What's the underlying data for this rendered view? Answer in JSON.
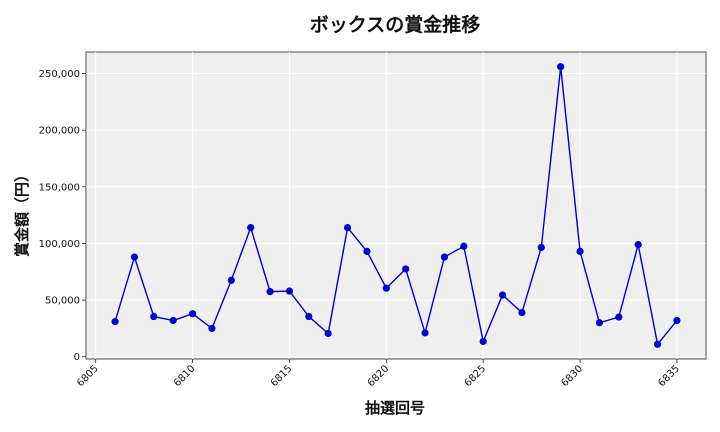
{
  "chart_data": {
    "type": "line",
    "title": "ボックスの賞金推移",
    "xlabel": "抽選回号",
    "ylabel": "賞金額（円）",
    "x": [
      6806,
      6807,
      6808,
      6809,
      6810,
      6811,
      6812,
      6813,
      6814,
      6815,
      6816,
      6817,
      6818,
      6819,
      6820,
      6821,
      6822,
      6823,
      6824,
      6825,
      6826,
      6827,
      6828,
      6829,
      6830,
      6831,
      6832,
      6833,
      6834,
      6835
    ],
    "series": [
      {
        "values": [
          31000,
          88000,
          35500,
          32000,
          38000,
          25000,
          67500,
          114000,
          57500,
          58000,
          35500,
          20500,
          114000,
          93000,
          60500,
          77500,
          21000,
          88000,
          97500,
          13500,
          54500,
          39000,
          96500,
          256000,
          93000,
          30000,
          35000,
          99000,
          11000,
          32000
        ],
        "color": "#0000cc"
      }
    ],
    "xlim": [
      6804.5,
      6836.5
    ],
    "ylim": [
      -2000,
      269000
    ],
    "xticks": [
      "6805",
      "6810",
      "6815",
      "6820",
      "6825",
      "6830",
      "6835"
    ],
    "yticks": [
      "0",
      "50,000",
      "100,000",
      "150,000",
      "200,000",
      "250,000"
    ],
    "grid": true,
    "plot_background": "#efefef"
  }
}
